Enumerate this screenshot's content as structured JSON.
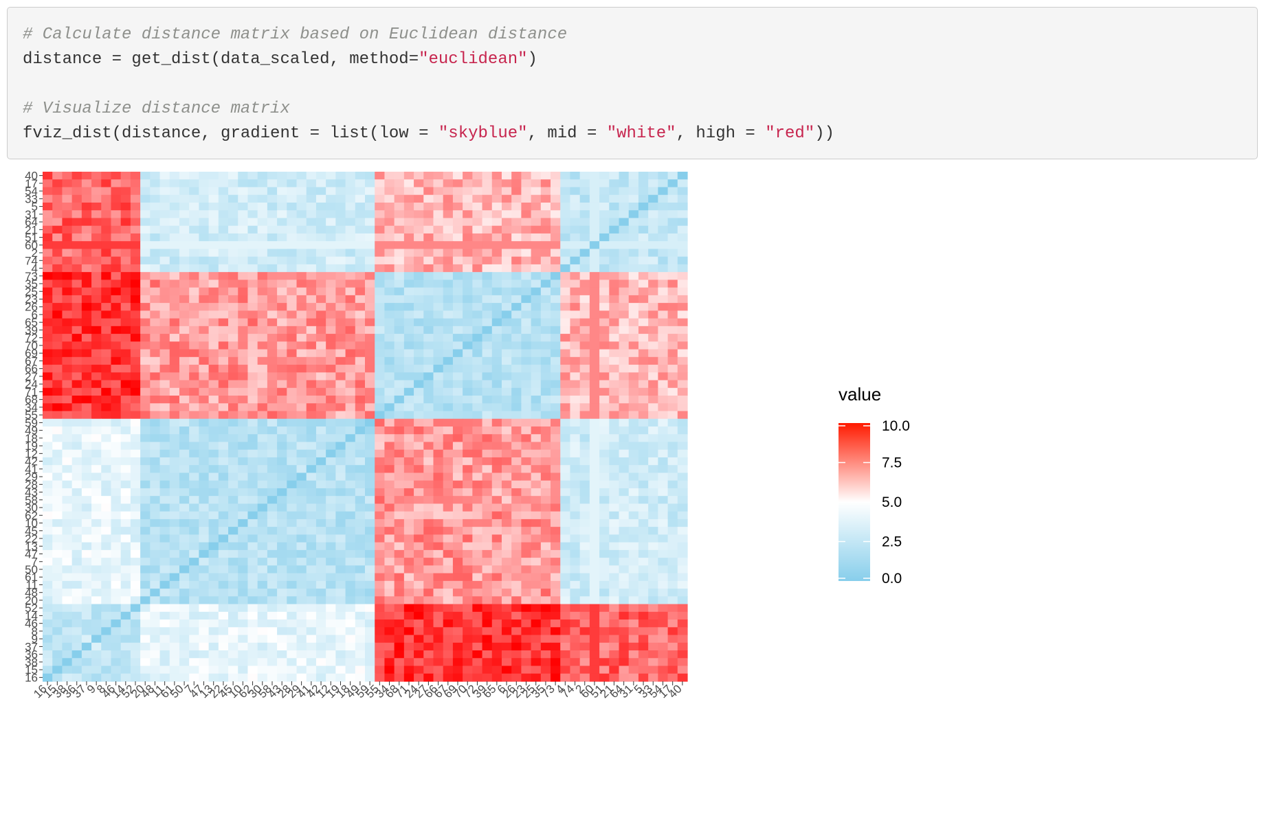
{
  "code": {
    "lines": [
      {
        "segments": [
          {
            "type": "comment",
            "text": "# Calculate distance matrix based on Euclidean distance"
          }
        ]
      },
      {
        "segments": [
          {
            "type": "plain",
            "text": "distance = get_dist(data_scaled, method="
          },
          {
            "type": "string",
            "text": "\"euclidean\""
          },
          {
            "type": "plain",
            "text": ")"
          }
        ]
      },
      {
        "segments": [
          {
            "type": "plain",
            "text": ""
          }
        ]
      },
      {
        "segments": [
          {
            "type": "comment",
            "text": "# Visualize distance matrix"
          }
        ]
      },
      {
        "segments": [
          {
            "type": "plain",
            "text": "fviz_dist(distance, gradient = list(low = "
          },
          {
            "type": "string",
            "text": "\"skyblue\""
          },
          {
            "type": "plain",
            "text": ", mid = "
          },
          {
            "type": "string",
            "text": "\"white\""
          },
          {
            "type": "plain",
            "text": ", high = "
          },
          {
            "type": "string",
            "text": "\"red\""
          },
          {
            "type": "plain",
            "text": "))"
          }
        ]
      }
    ]
  },
  "chart_data": {
    "type": "heatmap",
    "title": "",
    "xlabel": "",
    "ylabel": "",
    "y_labels_top_to_bottom": [
      "40",
      "17",
      "54",
      "33",
      "5",
      "31",
      "64",
      "21",
      "51",
      "60",
      "2",
      "74",
      "4",
      "73",
      "35",
      "25",
      "23",
      "26",
      "6",
      "65",
      "39",
      "72",
      "70",
      "69",
      "67",
      "66",
      "27",
      "24",
      "71",
      "68",
      "34",
      "55",
      "59",
      "49",
      "18",
      "19",
      "12",
      "42",
      "41",
      "29",
      "28",
      "43",
      "58",
      "30",
      "62",
      "10",
      "45",
      "22",
      "13",
      "47",
      "7",
      "50",
      "61",
      "11",
      "48",
      "20",
      "52",
      "14",
      "46",
      "8",
      "9",
      "37",
      "36",
      "38",
      "15",
      "16"
    ],
    "x_labels_left_to_right": [
      "16",
      "15",
      "38",
      "36",
      "37",
      "9",
      "8",
      "46",
      "14",
      "52",
      "20",
      "48",
      "11",
      "61",
      "50",
      "7",
      "47",
      "13",
      "22",
      "45",
      "10",
      "62",
      "30",
      "58",
      "43",
      "28",
      "29",
      "41",
      "42",
      "12",
      "19",
      "18",
      "49",
      "59",
      "55",
      "34",
      "68",
      "71",
      "24",
      "27",
      "66",
      "67",
      "69",
      "70",
      "72",
      "39",
      "65",
      "6",
      "26",
      "23",
      "25",
      "35",
      "73",
      "4",
      "74",
      "2",
      "60",
      "51",
      "21",
      "64",
      "31",
      "5",
      "33",
      "54",
      "17",
      "40"
    ],
    "clusters_in_order": [
      {
        "labels": [
          "16",
          "15",
          "38",
          "36",
          "37",
          "9",
          "8",
          "46",
          "14",
          "52"
        ],
        "group": "A"
      },
      {
        "labels": [
          "20",
          "48",
          "11",
          "61",
          "50",
          "7",
          "47",
          "13",
          "22",
          "45",
          "10",
          "62"
        ],
        "group": "B"
      },
      {
        "labels": [
          "30",
          "58",
          "43",
          "28",
          "29",
          "41",
          "42",
          "12",
          "19",
          "18",
          "49",
          "59"
        ],
        "group": "B"
      },
      {
        "labels": [
          "55",
          "34",
          "68",
          "71",
          "24",
          "27",
          "66",
          "67",
          "69",
          "70",
          "72",
          "39",
          "65",
          "6",
          "26",
          "23",
          "25",
          "35",
          "73"
        ],
        "group": "C"
      },
      {
        "labels": [
          "4",
          "74",
          "2",
          "60",
          "51",
          "21",
          "64",
          "31",
          "5",
          "33",
          "54",
          "17",
          "40"
        ],
        "group": "D"
      }
    ],
    "approx_group_distances": {
      "A-A": 2.5,
      "A-B": 4.0,
      "A-C": 9.0,
      "A-D": 8.0,
      "B-B": 2.0,
      "B-C": 7.0,
      "B-D": 3.0,
      "C-C": 2.0,
      "C-D": 6.5,
      "D-D": 2.5
    },
    "legend": {
      "title": "value",
      "ticks": [
        "10.0",
        "7.5",
        "5.0",
        "2.5",
        "0.0"
      ],
      "min": 0.0,
      "max": 10.0,
      "placement": "right"
    },
    "gradient": {
      "low": "#87ceeb",
      "mid": "#ffffff",
      "high": "#ff0000",
      "midpoint": 5.0
    }
  }
}
